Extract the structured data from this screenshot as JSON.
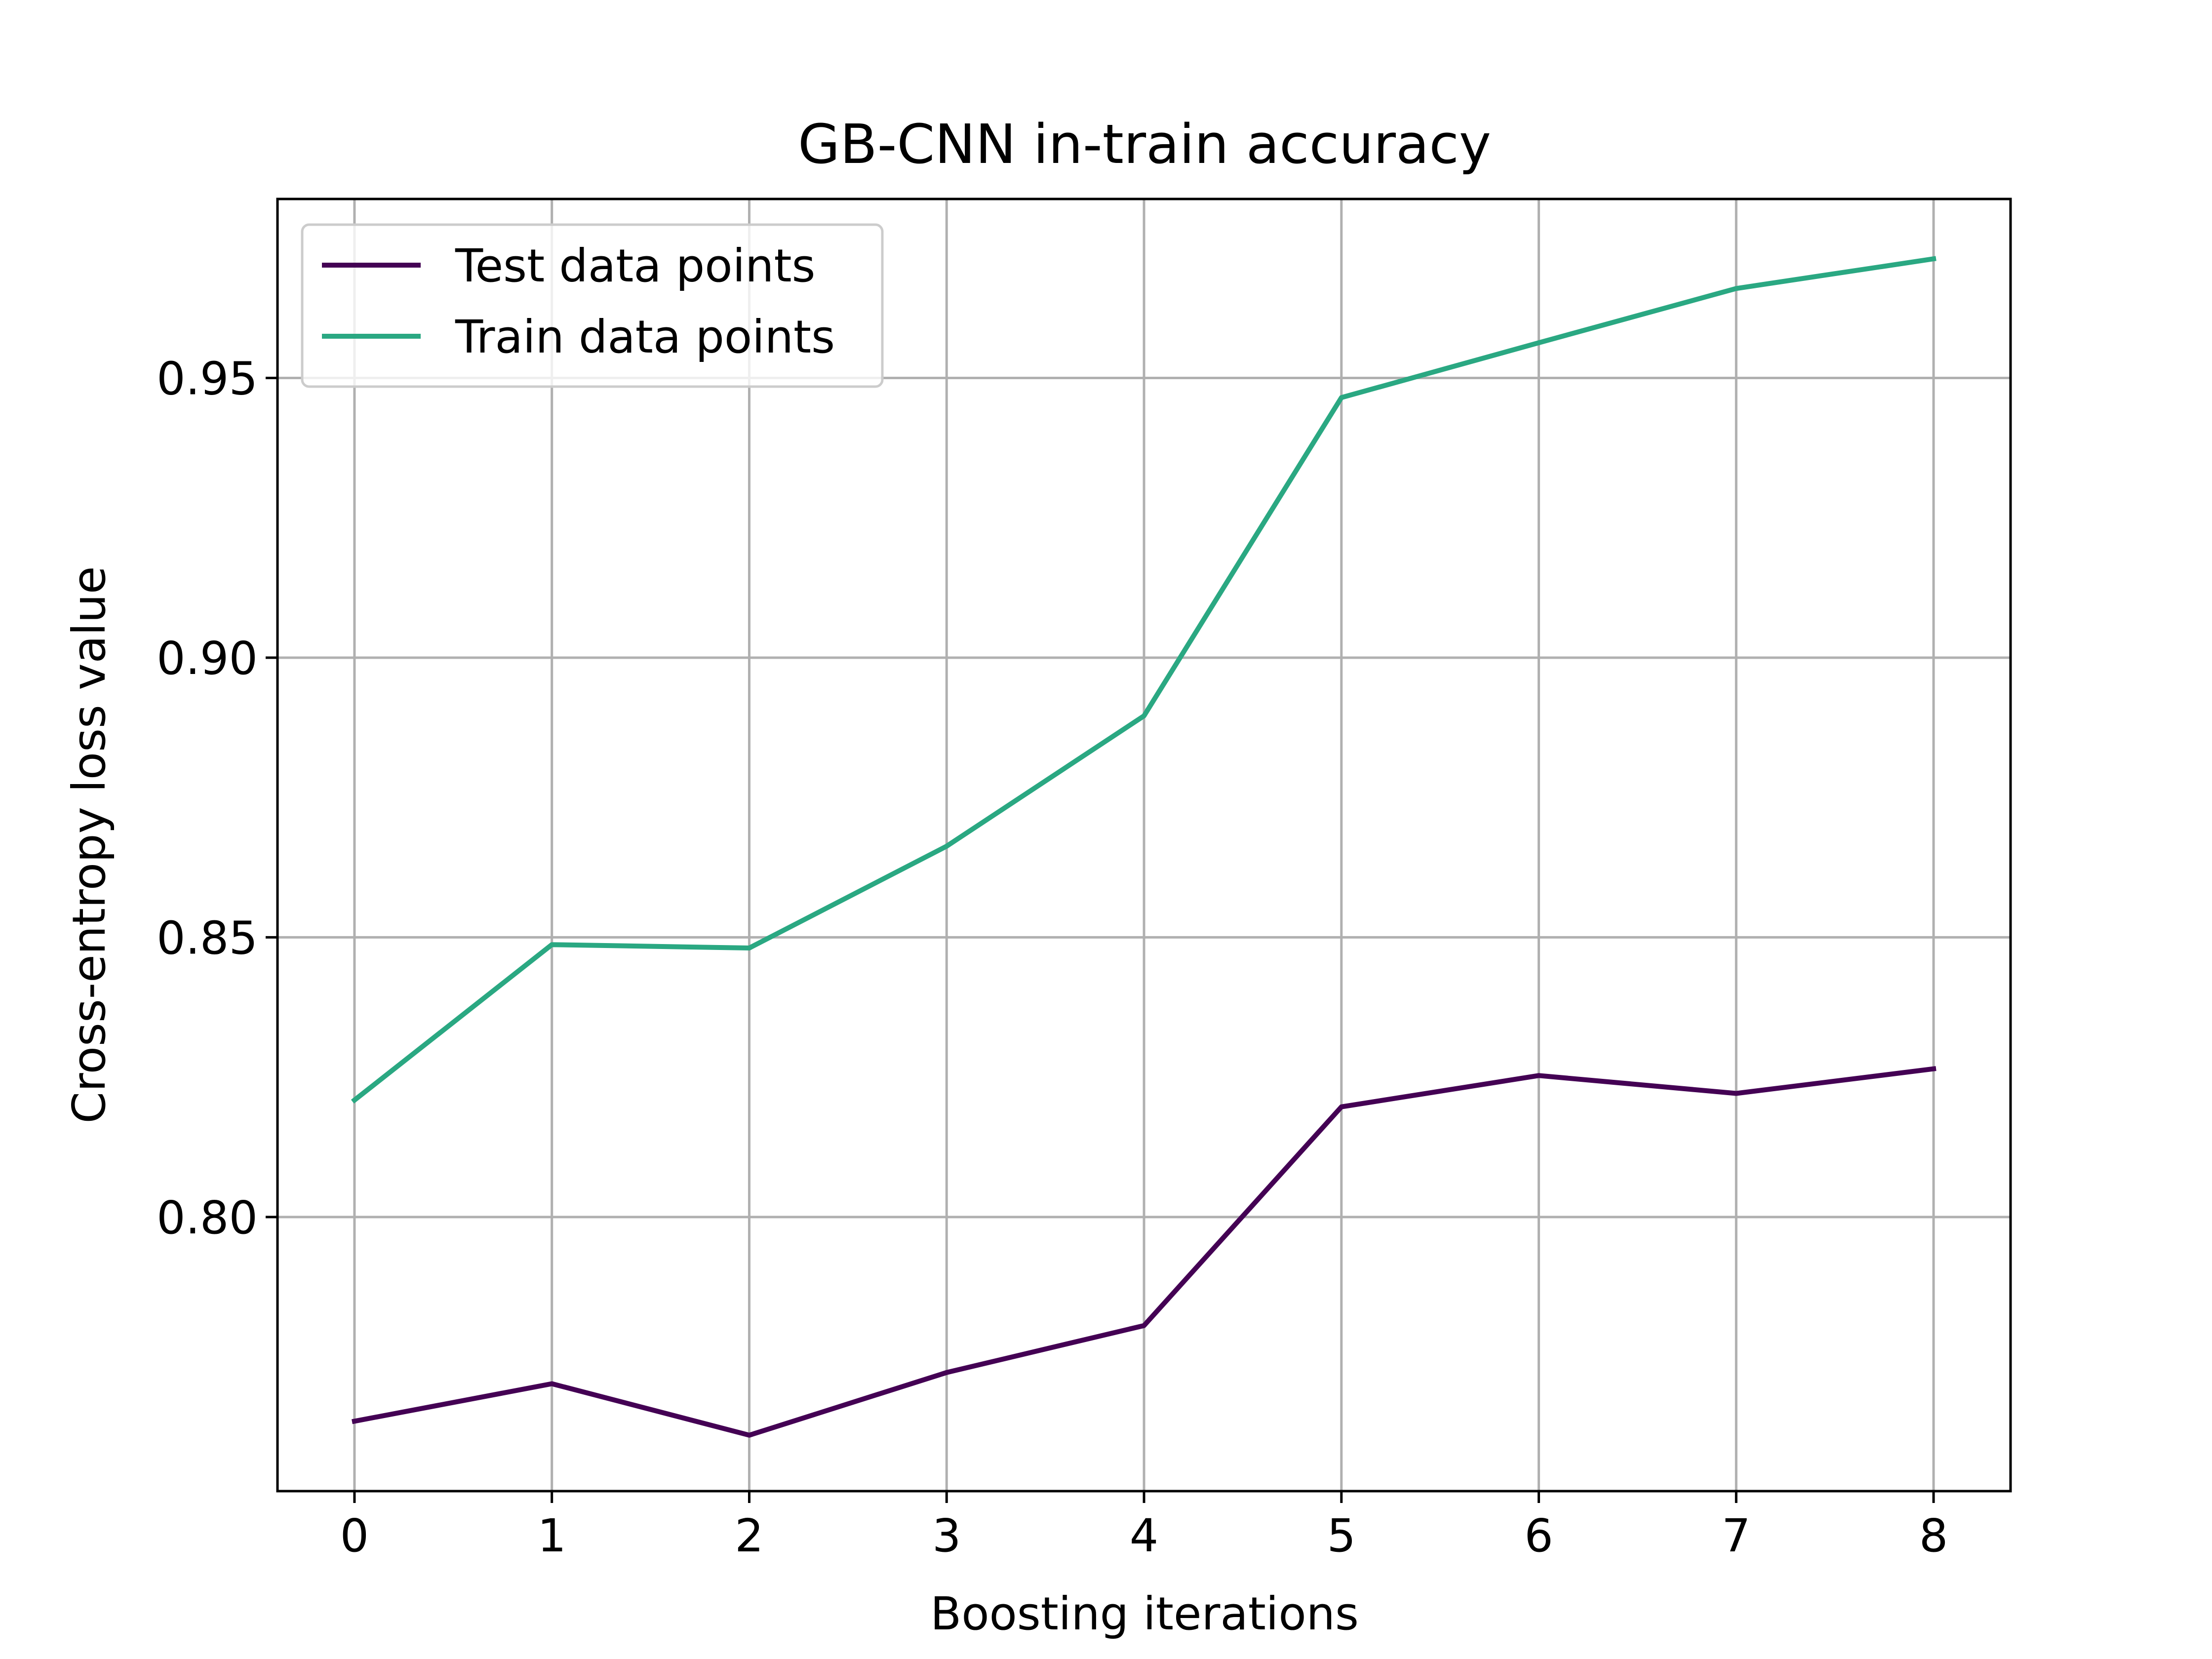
{
  "chart_data": {
    "type": "line",
    "title": "GB-CNN in-train accuracy",
    "xlabel": "Boosting iterations",
    "ylabel": "Cross-entropy loss value",
    "x": [
      0,
      1,
      2,
      3,
      4,
      5,
      6,
      7,
      8
    ],
    "xticks": [
      "0",
      "1",
      "2",
      "3",
      "4",
      "5",
      "6",
      "7",
      "8"
    ],
    "yticks": [
      "0.80",
      "0.85",
      "0.90",
      "0.95"
    ],
    "xlim": [
      -0.39,
      8.39
    ],
    "ylim": [
      0.751,
      0.982
    ],
    "grid": true,
    "legend_position": "top-left",
    "series": [
      {
        "name": "Test data points",
        "color": "#440154",
        "values": [
          0.7635,
          0.7702,
          0.761,
          0.7722,
          0.7806,
          0.8197,
          0.8253,
          0.8221,
          0.8265
        ]
      },
      {
        "name": "Train data points",
        "color": "#2aa882",
        "values": [
          0.8209,
          0.8487,
          0.8481,
          0.8663,
          0.8896,
          0.9465,
          0.9563,
          0.966,
          0.9713
        ]
      }
    ]
  }
}
